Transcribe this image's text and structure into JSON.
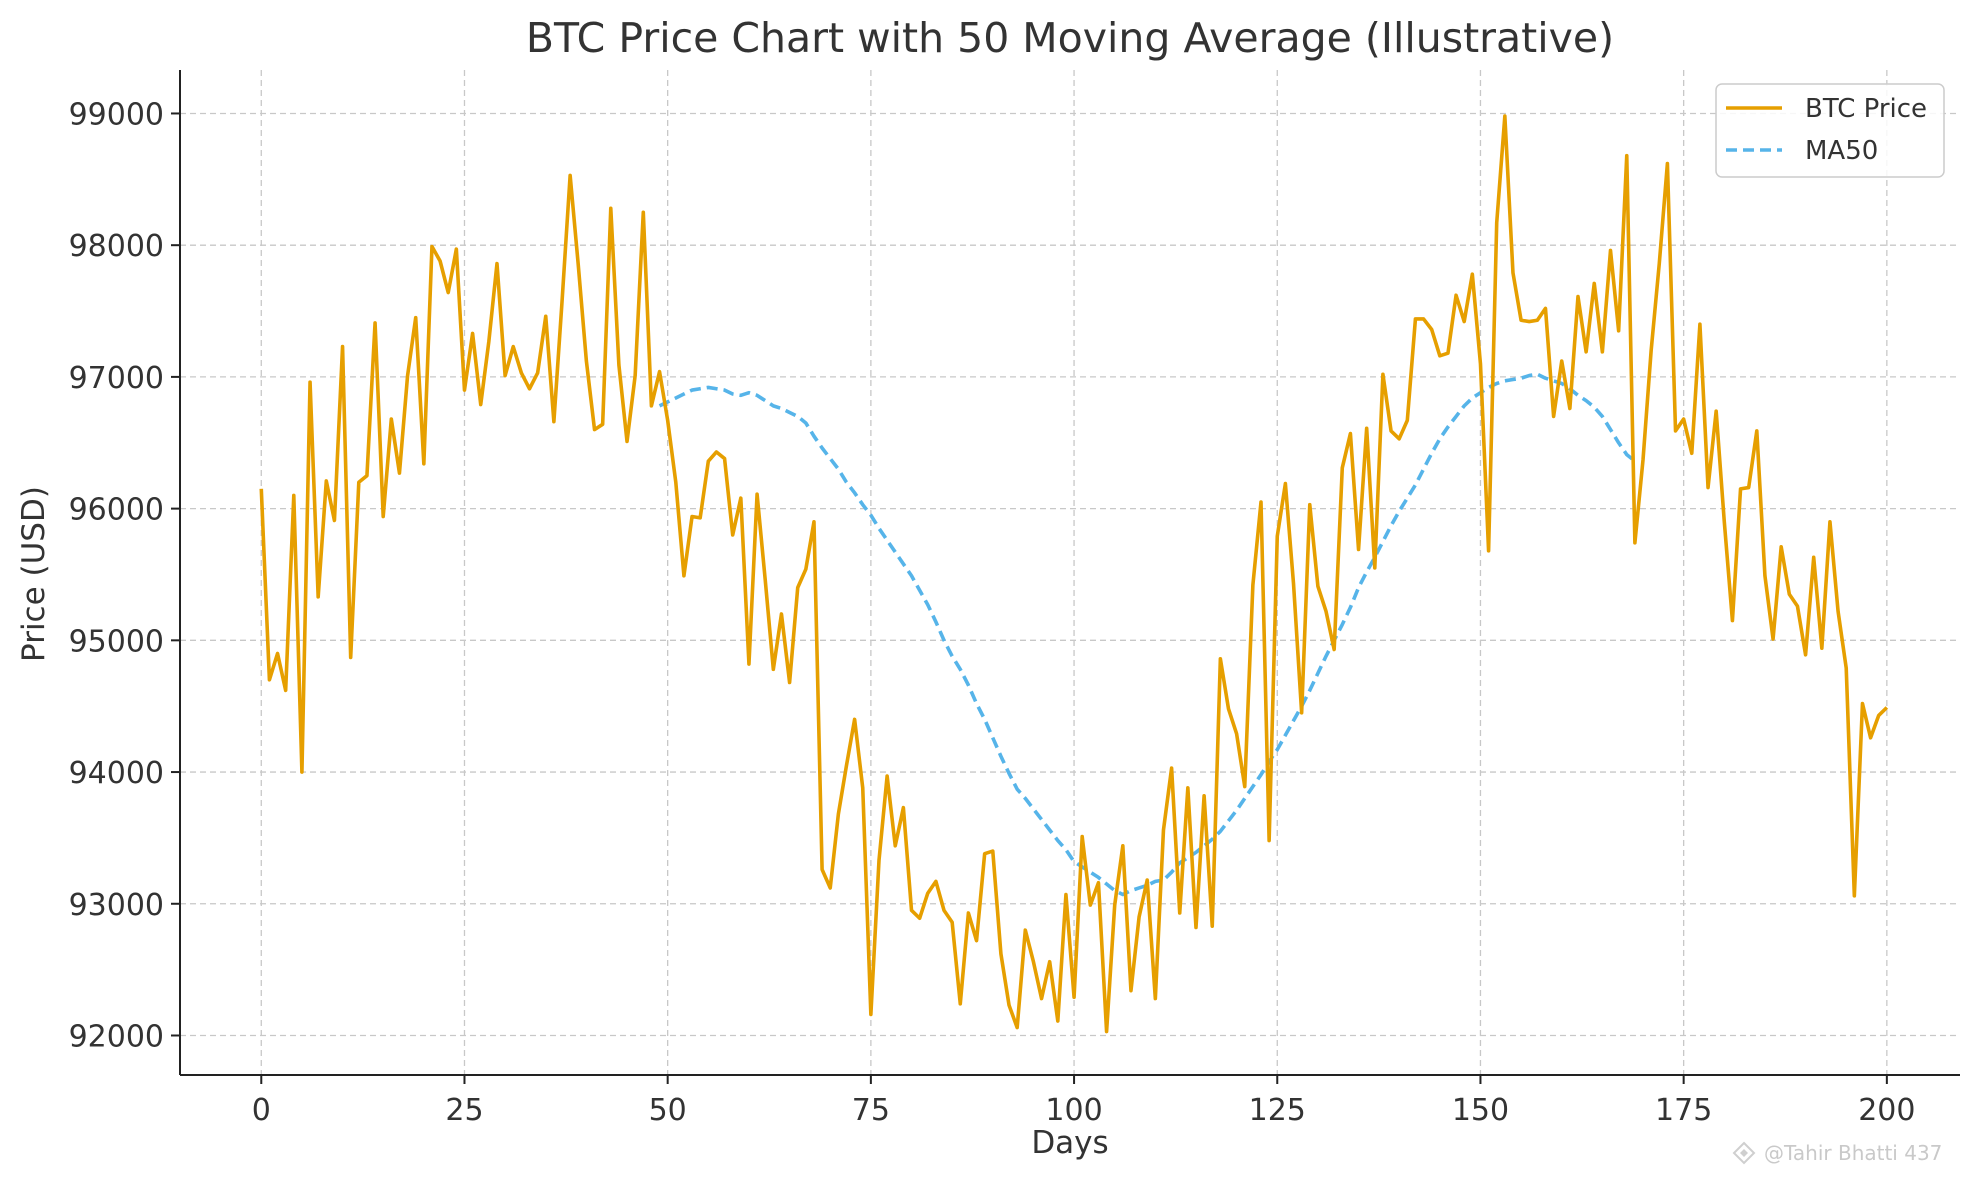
{
  "chart_data": {
    "type": "line",
    "title": "BTC Price Chart with 50 Moving Average (Illustrative)",
    "xlabel": "Days",
    "ylabel": "Price (USD)",
    "xlim": [
      -10,
      209
    ],
    "ylim": [
      91700,
      99330
    ],
    "xticks": [
      0,
      25,
      50,
      75,
      100,
      125,
      150,
      175,
      200
    ],
    "yticks": [
      92000,
      93000,
      94000,
      95000,
      96000,
      97000,
      98000,
      99000
    ],
    "grid": true,
    "legend_position": "top-right",
    "colors": {
      "price": "#E69F00",
      "ma": "#56B4E9",
      "grid": "#c8c8c8",
      "axis": "#222222"
    },
    "series": [
      {
        "name": "BTC Price",
        "style": "solid",
        "x_start": 0,
        "values": [
          96150,
          94700,
          94900,
          94620,
          96100,
          94000,
          96960,
          95330,
          96210,
          95910,
          97230,
          94870,
          96200,
          96250,
          97410,
          95940,
          96680,
          96270,
          97010,
          97450,
          96340,
          97990,
          97880,
          97640,
          97970,
          96900,
          97330,
          96790,
          97270,
          97860,
          97010,
          97230,
          97030,
          96910,
          97030,
          97460,
          96660,
          97570,
          98530,
          97850,
          97120,
          96600,
          96640,
          98280,
          97090,
          96510,
          97010,
          98250,
          96780,
          97040,
          96670,
          96200,
          95490,
          95940,
          95930,
          96360,
          96430,
          96380,
          95800,
          96080,
          94820,
          96110,
          95460,
          94780,
          95200,
          94680,
          95400,
          95540,
          95900,
          93260,
          93120,
          93680,
          94050,
          94400,
          93880,
          92160,
          93330,
          93970,
          93440,
          93730,
          92950,
          92890,
          93080,
          93170,
          92950,
          92860,
          92240,
          92930,
          92720,
          93380,
          93400,
          92620,
          92230,
          92060,
          92800,
          92560,
          92280,
          92560,
          92110,
          93070,
          92290,
          93510,
          92990,
          93160,
          92030,
          92990,
          93440,
          92340,
          92900,
          93180,
          92280,
          93560,
          94030,
          92930,
          93880,
          92820,
          93820,
          92830,
          94860,
          94480,
          94290,
          93890,
          95420,
          96050,
          93480,
          95790,
          96190,
          95430,
          94450,
          96030,
          95410,
          95220,
          94930,
          96310,
          96570,
          95690,
          96610,
          95550,
          97020,
          96590,
          96530,
          96670,
          97440,
          97440,
          97360,
          97160,
          97180,
          97620,
          97420,
          97780,
          97100,
          95680,
          98170,
          98980,
          97790,
          97430,
          97420,
          97430,
          97520,
          96700,
          97120,
          96760,
          97610,
          97190,
          97710,
          97190,
          97960,
          97350,
          98680,
          95740,
          96370,
          97200,
          97860,
          98620,
          96590,
          96680,
          96420,
          97400,
          96160,
          96740,
          95900,
          95150,
          96150,
          96160,
          96590,
          95490,
          95010,
          95710,
          95350,
          95260,
          94890,
          95630,
          94940,
          95900,
          95220,
          94790,
          93060,
          94520,
          94260,
          94430,
          94490
        ]
      },
      {
        "name": "MA50",
        "style": "dashed",
        "x_start": 49,
        "values": [
          96780,
          96810,
          96840,
          96870,
          96900,
          96910,
          96920,
          96910,
          96900,
          96870,
          96860,
          96880,
          96860,
          96820,
          96780,
          96760,
          96730,
          96700,
          96650,
          96550,
          96460,
          96380,
          96300,
          96200,
          96120,
          96030,
          95950,
          95850,
          95760,
          95670,
          95580,
          95490,
          95380,
          95270,
          95140,
          95000,
          94880,
          94780,
          94660,
          94520,
          94400,
          94260,
          94120,
          93990,
          93870,
          93800,
          93720,
          93640,
          93560,
          93480,
          93410,
          93320,
          93280,
          93240,
          93200,
          93150,
          93100,
          93070,
          93100,
          93120,
          93140,
          93170,
          93180,
          93240,
          93310,
          93350,
          93390,
          93440,
          93490,
          93550,
          93630,
          93710,
          93800,
          93890,
          93980,
          94080,
          94170,
          94280,
          94390,
          94500,
          94620,
          94750,
          94880,
          95000,
          95120,
          95250,
          95400,
          95520,
          95630,
          95750,
          95870,
          95980,
          96080,
          96180,
          96300,
          96420,
          96530,
          96620,
          96700,
          96780,
          96840,
          96880,
          96920,
          96950,
          96970,
          96980,
          96990,
          97010,
          97020,
          96990,
          96970,
          96950,
          96910,
          96860,
          96820,
          96770,
          96700,
          96600,
          96500,
          96410,
          96360
        ]
      }
    ]
  },
  "watermark": {
    "text": "@Tahir Bhatti 437",
    "icon": "diamond-logo-icon"
  }
}
